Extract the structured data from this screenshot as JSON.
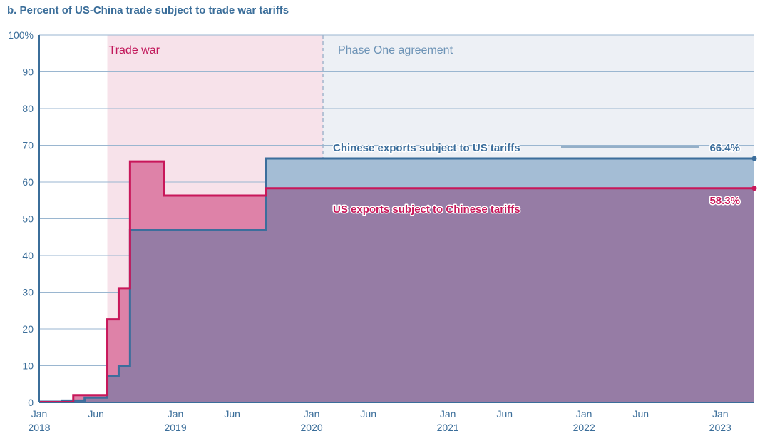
{
  "chart_data": {
    "type": "area",
    "title": "b. Percent of US-China trade subject to trade war tariffs",
    "xlabel": "",
    "ylabel": "",
    "x_start": "2018-01",
    "x_end": "2023-04",
    "ylim": [
      0,
      100
    ],
    "yticks": [
      0,
      10,
      20,
      30,
      40,
      50,
      60,
      70,
      80,
      90,
      100
    ],
    "ytick_labels": [
      "0",
      "10",
      "20",
      "30",
      "40",
      "50",
      "60",
      "70",
      "80",
      "90",
      "100%"
    ],
    "xticks": [
      {
        "date": "2018-01",
        "label": "Jan",
        "label2": "2018"
      },
      {
        "date": "2018-06",
        "label": "Jun",
        "label2": ""
      },
      {
        "date": "2019-01",
        "label": "Jan",
        "label2": "2019"
      },
      {
        "date": "2019-06",
        "label": "Jun",
        "label2": ""
      },
      {
        "date": "2020-01",
        "label": "Jan",
        "label2": "2020"
      },
      {
        "date": "2020-06",
        "label": "Jun",
        "label2": ""
      },
      {
        "date": "2021-01",
        "label": "Jan",
        "label2": "2021"
      },
      {
        "date": "2021-06",
        "label": "Jun",
        "label2": ""
      },
      {
        "date": "2022-01",
        "label": "Jan",
        "label2": "2022"
      },
      {
        "date": "2022-06",
        "label": "Jun",
        "label2": ""
      },
      {
        "date": "2023-01",
        "label": "Jan",
        "label2": "2023"
      }
    ],
    "grid": true,
    "regions": [
      {
        "label": "Trade war",
        "start": "2018-07",
        "end": "2020-02",
        "color": "#f7e2ea",
        "text_color": "#c2185b"
      },
      {
        "label": "Phase One agreement",
        "start": "2020-02",
        "end": "2023-04",
        "color": "#edf0f5",
        "text_color": "#6d93b6"
      }
    ],
    "series": [
      {
        "name": "Chinese exports subject to US tariffs",
        "color": "#3c6e9c",
        "fill": "#a4bdd5",
        "end_label": "66.4%",
        "steps": [
          {
            "date": "2018-01",
            "value": 0.2
          },
          {
            "date": "2018-03",
            "value": 0.5
          },
          {
            "date": "2018-05",
            "value": 1.3
          },
          {
            "date": "2018-07",
            "value": 7.1
          },
          {
            "date": "2018-08",
            "value": 10
          },
          {
            "date": "2018-09",
            "value": 46.9
          },
          {
            "date": "2019-09",
            "value": 66.4
          },
          {
            "date": "2023-04",
            "value": 66.4
          }
        ]
      },
      {
        "name": "US exports subject to Chinese tariffs",
        "color": "#c8175a",
        "fill": "#de82a8",
        "end_label": "58.3%",
        "steps": [
          {
            "date": "2018-01",
            "value": 0.1
          },
          {
            "date": "2018-04",
            "value": 2
          },
          {
            "date": "2018-07",
            "value": 22.6
          },
          {
            "date": "2018-08",
            "value": 31.1
          },
          {
            "date": "2018-09",
            "value": 65.6
          },
          {
            "date": "2018-12",
            "value": 56.3
          },
          {
            "date": "2019-09",
            "value": 58.3
          },
          {
            "date": "2023-04",
            "value": 58.3
          }
        ]
      }
    ],
    "overlap_color": "#967ca5"
  }
}
